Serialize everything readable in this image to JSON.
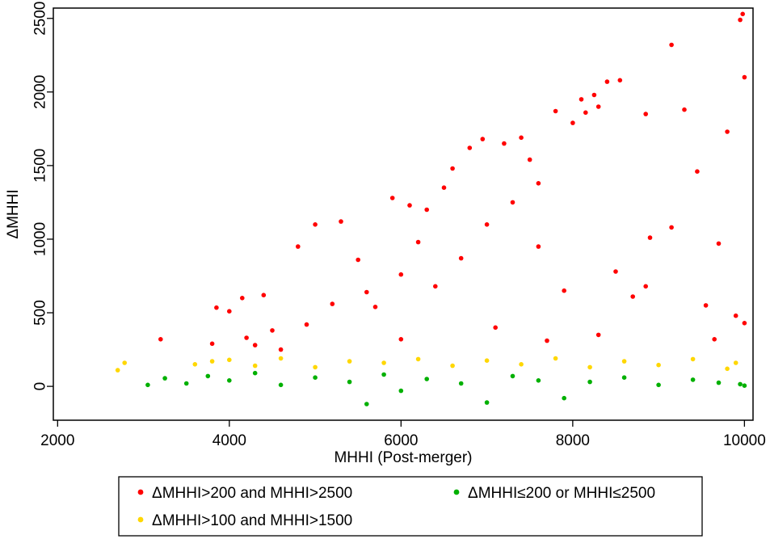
{
  "chart_data": {
    "type": "scatter",
    "title": "",
    "xlabel": "MHHI (Post-merger)",
    "ylabel": "ΔMHHI",
    "xlim": [
      1950,
      10100
    ],
    "ylim": [
      -230,
      2570
    ],
    "xticks": [
      2000,
      4000,
      6000,
      8000,
      10000
    ],
    "yticks": [
      0,
      500,
      1000,
      1500,
      2000,
      2500
    ],
    "grid": false,
    "legend_position": "bottom",
    "series": [
      {
        "name": "ΔMHHI>200 and MHHI>2500",
        "color": "#ff0000",
        "points": [
          [
            3200,
            320
          ],
          [
            3800,
            290
          ],
          [
            3850,
            535
          ],
          [
            4000,
            510
          ],
          [
            4150,
            600
          ],
          [
            4300,
            280
          ],
          [
            4400,
            620
          ],
          [
            4600,
            250
          ],
          [
            4800,
            950
          ],
          [
            5000,
            1100
          ],
          [
            5300,
            1120
          ],
          [
            5500,
            860
          ],
          [
            5700,
            540
          ],
          [
            5900,
            1280
          ],
          [
            6100,
            1230
          ],
          [
            6200,
            980
          ],
          [
            6300,
            1200
          ],
          [
            6500,
            1350
          ],
          [
            6600,
            1480
          ],
          [
            6800,
            1620
          ],
          [
            6950,
            1680
          ],
          [
            7200,
            1650
          ],
          [
            7400,
            1690
          ],
          [
            7500,
            1540
          ],
          [
            7600,
            1380
          ],
          [
            7800,
            1870
          ],
          [
            8000,
            1790
          ],
          [
            8100,
            1950
          ],
          [
            8150,
            1860
          ],
          [
            8250,
            1980
          ],
          [
            8300,
            1900
          ],
          [
            8400,
            2070
          ],
          [
            8550,
            2080
          ],
          [
            8850,
            1850
          ],
          [
            9150,
            2320
          ],
          [
            9300,
            1880
          ],
          [
            9450,
            1460
          ],
          [
            9700,
            970
          ],
          [
            9800,
            1730
          ],
          [
            9950,
            2490
          ],
          [
            9980,
            2530
          ],
          [
            10000,
            2100
          ],
          [
            10000,
            430
          ],
          [
            9900,
            480
          ],
          [
            9150,
            1080
          ],
          [
            8900,
            1010
          ],
          [
            8850,
            680
          ],
          [
            8700,
            610
          ],
          [
            8500,
            780
          ],
          [
            8300,
            350
          ],
          [
            7900,
            650
          ],
          [
            7600,
            950
          ],
          [
            7300,
            1250
          ],
          [
            7000,
            1100
          ],
          [
            6700,
            870
          ],
          [
            6400,
            680
          ],
          [
            6000,
            760
          ],
          [
            5600,
            640
          ],
          [
            5200,
            560
          ],
          [
            4900,
            420
          ],
          [
            4500,
            380
          ],
          [
            4200,
            330
          ],
          [
            6000,
            320
          ],
          [
            7100,
            400
          ],
          [
            7700,
            310
          ],
          [
            9550,
            550
          ],
          [
            9650,
            320
          ]
        ]
      },
      {
        "name": "ΔMHHI>100 and MHHI>1500",
        "color": "#ffd700",
        "points": [
          [
            2700,
            110
          ],
          [
            2780,
            160
          ],
          [
            3600,
            150
          ],
          [
            3800,
            170
          ],
          [
            4000,
            180
          ],
          [
            4300,
            140
          ],
          [
            4600,
            190
          ],
          [
            5000,
            130
          ],
          [
            5400,
            170
          ],
          [
            5800,
            160
          ],
          [
            6200,
            185
          ],
          [
            6600,
            140
          ],
          [
            7000,
            175
          ],
          [
            7400,
            150
          ],
          [
            7800,
            190
          ],
          [
            8200,
            130
          ],
          [
            8600,
            170
          ],
          [
            9000,
            145
          ],
          [
            9400,
            185
          ],
          [
            9800,
            120
          ],
          [
            9900,
            160
          ]
        ]
      },
      {
        "name": "ΔMHHI≤200 or MHHI≤2500",
        "color": "#00b000",
        "points": [
          [
            3050,
            10
          ],
          [
            3250,
            55
          ],
          [
            3500,
            20
          ],
          [
            3750,
            70
          ],
          [
            4000,
            40
          ],
          [
            4300,
            90
          ],
          [
            4600,
            10
          ],
          [
            5000,
            60
          ],
          [
            5400,
            30
          ],
          [
            5600,
            -120
          ],
          [
            5800,
            80
          ],
          [
            6000,
            -30
          ],
          [
            6300,
            50
          ],
          [
            6700,
            20
          ],
          [
            7000,
            -110
          ],
          [
            7300,
            70
          ],
          [
            7600,
            40
          ],
          [
            7900,
            -80
          ],
          [
            8200,
            30
          ],
          [
            8600,
            60
          ],
          [
            9000,
            10
          ],
          [
            9400,
            45
          ],
          [
            9700,
            25
          ],
          [
            9950,
            15
          ],
          [
            10000,
            5
          ]
        ]
      }
    ]
  }
}
